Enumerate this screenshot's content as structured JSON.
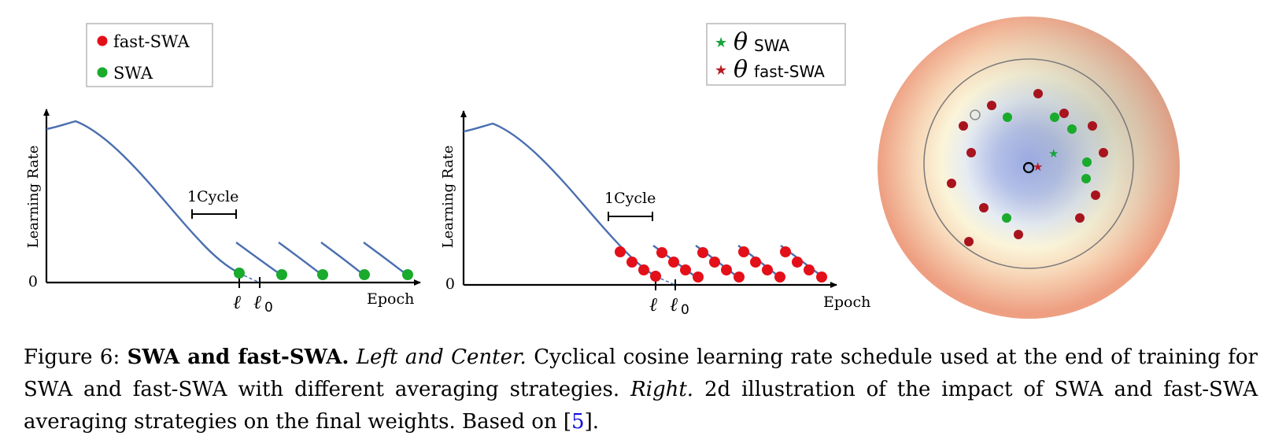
{
  "left_panel": {
    "ylabel": "Learning Rate",
    "xlabel": "Epoch",
    "zero_label": "0",
    "cycle_label": "1Cycle",
    "tick_l": "ℓ",
    "tick_l0": "ℓ",
    "tick_l0_sub": "0",
    "legend": {
      "fast_swa": "fast-SWA",
      "swa": "SWA"
    }
  },
  "center_panel": {
    "ylabel": "Learning Rate",
    "xlabel": "Epoch",
    "zero_label": "0",
    "cycle_label": "1Cycle",
    "tick_l": "ℓ",
    "tick_l0": "ℓ",
    "tick_l0_sub": "0"
  },
  "right_panel": {
    "legend": {
      "theta": "θ",
      "swa": "SWA",
      "fast_swa": "fast-SWA"
    }
  },
  "colors": {
    "curve": "#4a6fb0",
    "fast_swa_dot": "#e3101a",
    "swa_dot": "#1aaa2c",
    "dark_red_dot": "#a8141e",
    "star_red": "#b81c24",
    "star_green": "#17a33a",
    "cite": "#1010e0"
  },
  "caption": {
    "label": "Figure 6:",
    "bold": "SWA and fast-SWA.",
    "italic1": "Left and Center.",
    "text1": "Cyclical cosine learning rate schedule used at the end of training for SWA and fast-SWA with different averaging strategies.",
    "italic2": "Right.",
    "text2": "2d illustration of the impact of SWA and fast-SWA averaging strategies on the final weights. Based on [",
    "cite": "5",
    "text3": "]."
  }
}
